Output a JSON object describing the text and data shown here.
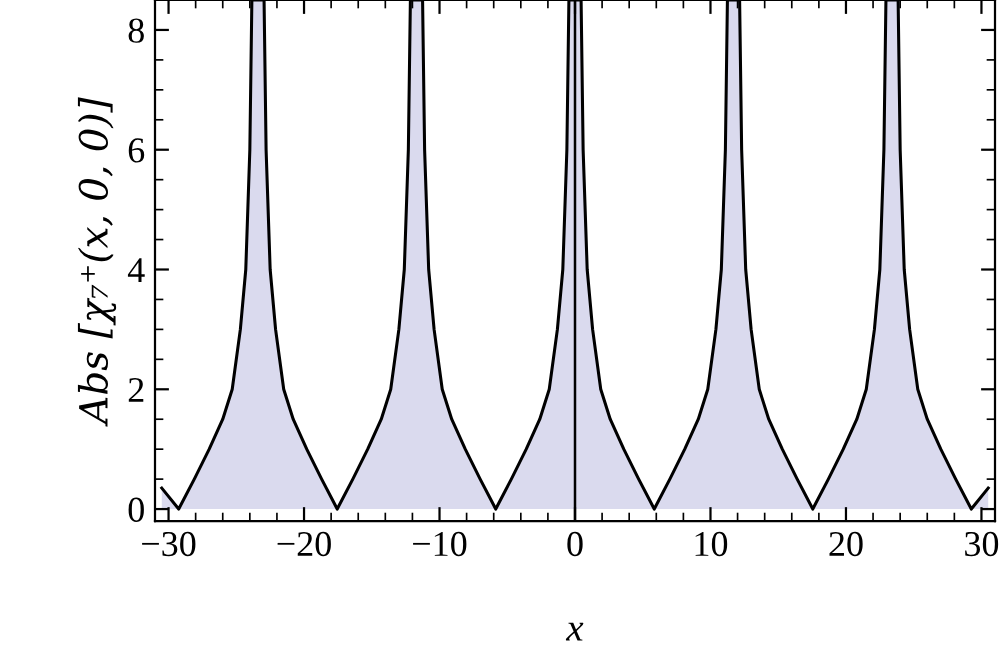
{
  "chart_data": {
    "type": "area",
    "xlabel": "x",
    "ylabel": "Abs [χ₇⁺(x, 0, 0)]",
    "xlim": [
      -31,
      31
    ],
    "ylim": [
      -0.2,
      8.5
    ],
    "xticks": [
      -30,
      -20,
      -10,
      0,
      10,
      20,
      30,
      {
        "value": -28,
        "label": null
      },
      {
        "value": -26,
        "label": null
      },
      {
        "value": -24,
        "label": null
      },
      {
        "value": -22,
        "label": null
      },
      {
        "value": -18,
        "label": null
      },
      {
        "value": -16,
        "label": null
      },
      {
        "value": -14,
        "label": null
      },
      {
        "value": -12,
        "label": null
      },
      {
        "value": -8,
        "label": null
      },
      {
        "value": -6,
        "label": null
      },
      {
        "value": -4,
        "label": null
      },
      {
        "value": -2,
        "label": null
      },
      {
        "value": 2,
        "label": null
      },
      {
        "value": 4,
        "label": null
      },
      {
        "value": 6,
        "label": null
      },
      {
        "value": 8,
        "label": null
      },
      {
        "value": 12,
        "label": null
      },
      {
        "value": 14,
        "label": null
      },
      {
        "value": 16,
        "label": null
      },
      {
        "value": 18,
        "label": null
      },
      {
        "value": 22,
        "label": null
      },
      {
        "value": 24,
        "label": null
      },
      {
        "value": 26,
        "label": null
      },
      {
        "value": 28,
        "label": null
      }
    ],
    "yticks": [
      0,
      2,
      4,
      6,
      8,
      {
        "value": 0.5,
        "label": null
      },
      {
        "value": 1,
        "label": null
      },
      {
        "value": 1.5,
        "label": null
      },
      {
        "value": 2.5,
        "label": null
      },
      {
        "value": 3,
        "label": null
      },
      {
        "value": 3.5,
        "label": null
      },
      {
        "value": 4.5,
        "label": null
      },
      {
        "value": 5,
        "label": null
      },
      {
        "value": 5.5,
        "label": null
      },
      {
        "value": 6.5,
        "label": null
      },
      {
        "value": 7,
        "label": null
      },
      {
        "value": 7.5,
        "label": null
      },
      {
        "value": 8.5,
        "label": null
      }
    ],
    "grid": false,
    "legend": false,
    "ref_lines": [
      {
        "axis": "x",
        "value": 0,
        "color": "#000000"
      }
    ],
    "series": [
      {
        "color": "#dadaee",
        "x": [
          -30.5,
          -29.25,
          -28.1,
          -27.0,
          -26.0,
          -25.3,
          -24.7,
          -24.3,
          -24.0,
          -23.85,
          -23.4,
          -22.95,
          -22.8,
          -22.5,
          -22.1,
          -21.5,
          -20.8,
          -19.8,
          -18.7,
          -17.55,
          -16.4,
          -15.3,
          -14.3,
          -13.6,
          -13.0,
          -12.6,
          -12.3,
          -12.15,
          -11.7,
          -11.25,
          -11.1,
          -10.8,
          -10.4,
          -9.8,
          -9.1,
          -8.1,
          -7.0,
          -5.85,
          -4.7,
          -3.6,
          -2.6,
          -1.9,
          -1.3,
          -0.9,
          -0.6,
          -0.45,
          0,
          0.45,
          0.6,
          0.9,
          1.3,
          1.9,
          2.6,
          3.6,
          4.7,
          5.85,
          7.0,
          8.1,
          9.1,
          9.8,
          10.4,
          10.8,
          11.1,
          11.25,
          11.7,
          12.15,
          12.3,
          12.6,
          13.0,
          13.6,
          14.3,
          15.3,
          16.4,
          17.55,
          18.7,
          19.8,
          20.8,
          21.5,
          22.1,
          22.5,
          22.8,
          22.95,
          23.4,
          23.85,
          24.0,
          24.3,
          24.7,
          25.3,
          26.0,
          27.0,
          28.1,
          29.25,
          30.5
        ],
        "values": [
          0.35,
          0,
          0.5,
          1,
          1.5,
          2,
          3,
          4,
          6,
          8.5,
          8.5,
          8.5,
          6,
          4,
          3,
          2,
          1.5,
          1,
          0.5,
          0,
          0.5,
          1,
          1.5,
          2,
          3,
          4,
          6,
          8.5,
          8.5,
          8.5,
          6,
          4,
          3,
          2,
          1.5,
          1,
          0.5,
          0,
          0.5,
          1,
          1.5,
          2,
          3,
          4,
          6,
          8.5,
          8.5,
          8.5,
          6,
          4,
          3,
          2,
          1.5,
          1,
          0.5,
          0,
          0.5,
          1,
          1.5,
          2,
          3,
          4,
          6,
          8.5,
          8.5,
          8.5,
          6,
          4,
          3,
          2,
          1.5,
          1,
          0.5,
          0,
          0.5,
          1,
          1.5,
          2,
          3,
          4,
          6,
          8.5,
          8.5,
          8.5,
          6,
          4,
          3,
          2,
          1.5,
          1,
          0.5,
          0,
          0.35
        ]
      }
    ]
  }
}
